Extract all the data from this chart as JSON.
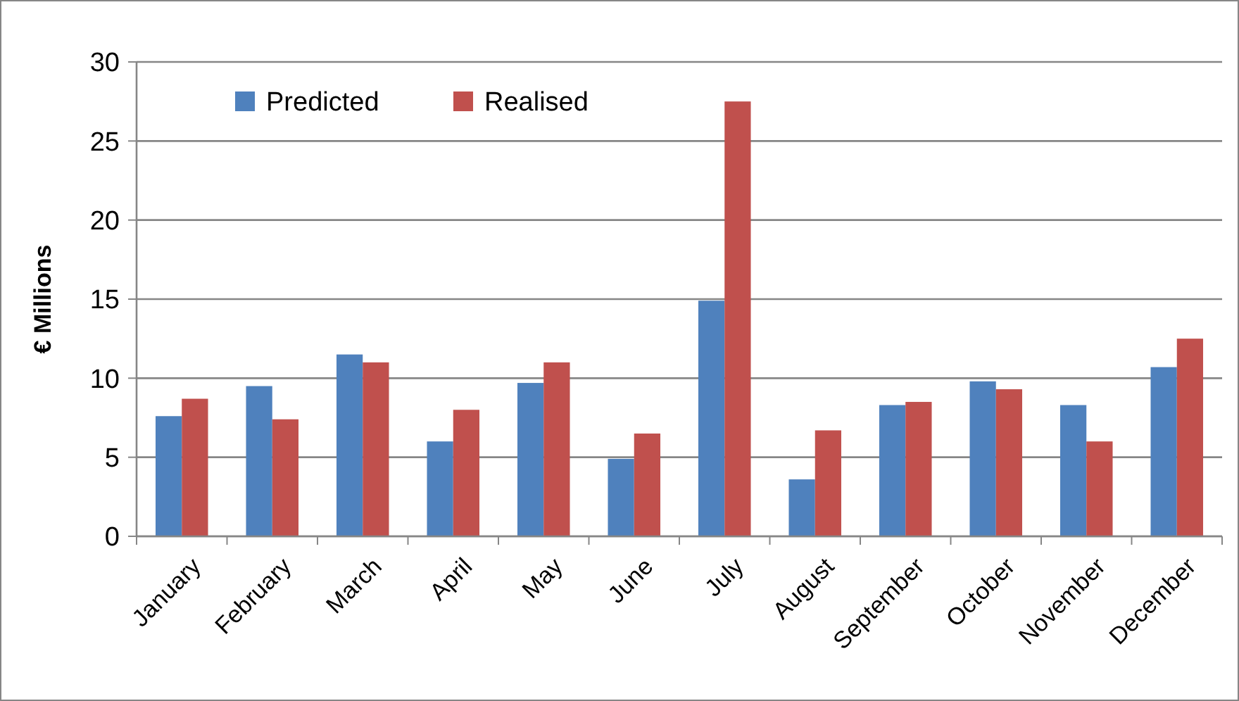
{
  "chart_data": {
    "type": "bar",
    "ylabel": "€ Millions",
    "categories": [
      "January",
      "February",
      "March",
      "April",
      "May",
      "June",
      "July",
      "August",
      "September",
      "October",
      "November",
      "December"
    ],
    "series": [
      {
        "name": "Predicted",
        "color": "#4f81bd",
        "values": [
          7.6,
          9.5,
          11.5,
          6.0,
          9.7,
          4.9,
          14.9,
          3.6,
          8.3,
          9.8,
          8.3,
          10.7
        ]
      },
      {
        "name": "Realised",
        "color": "#c0504d",
        "values": [
          8.7,
          7.4,
          11.0,
          8.0,
          11.0,
          6.5,
          27.5,
          6.7,
          8.5,
          9.3,
          6.0,
          12.5
        ]
      }
    ],
    "ylim": [
      0,
      30
    ],
    "yticks": [
      0,
      5,
      10,
      15,
      20,
      25,
      30
    ],
    "grid": "y",
    "legend": "top left"
  }
}
